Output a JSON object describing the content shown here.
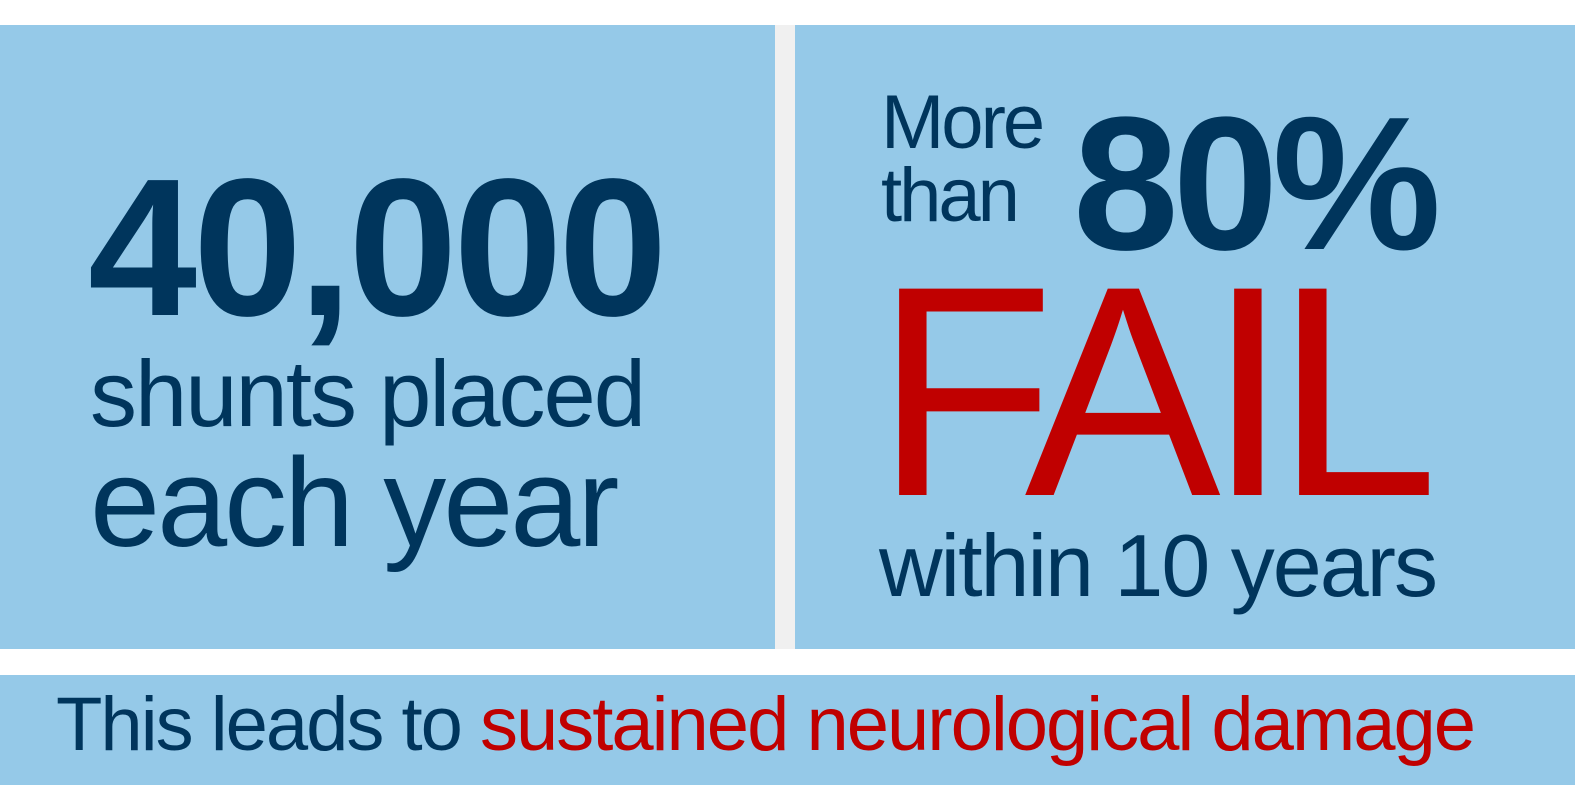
{
  "left_panel": {
    "number": "40,000",
    "line1": "shunts placed",
    "line2": "each year"
  },
  "right_panel": {
    "more": "More",
    "than": "than",
    "percent": "80%",
    "fail": "FAIL",
    "within": "within 10 years"
  },
  "bottom_banner": {
    "lead": "This leads to ",
    "highlight": "sustained neurological damage"
  },
  "colors": {
    "panel_background": "#95c9e8",
    "navy_text": "#00355c",
    "red_text": "#c00000"
  }
}
